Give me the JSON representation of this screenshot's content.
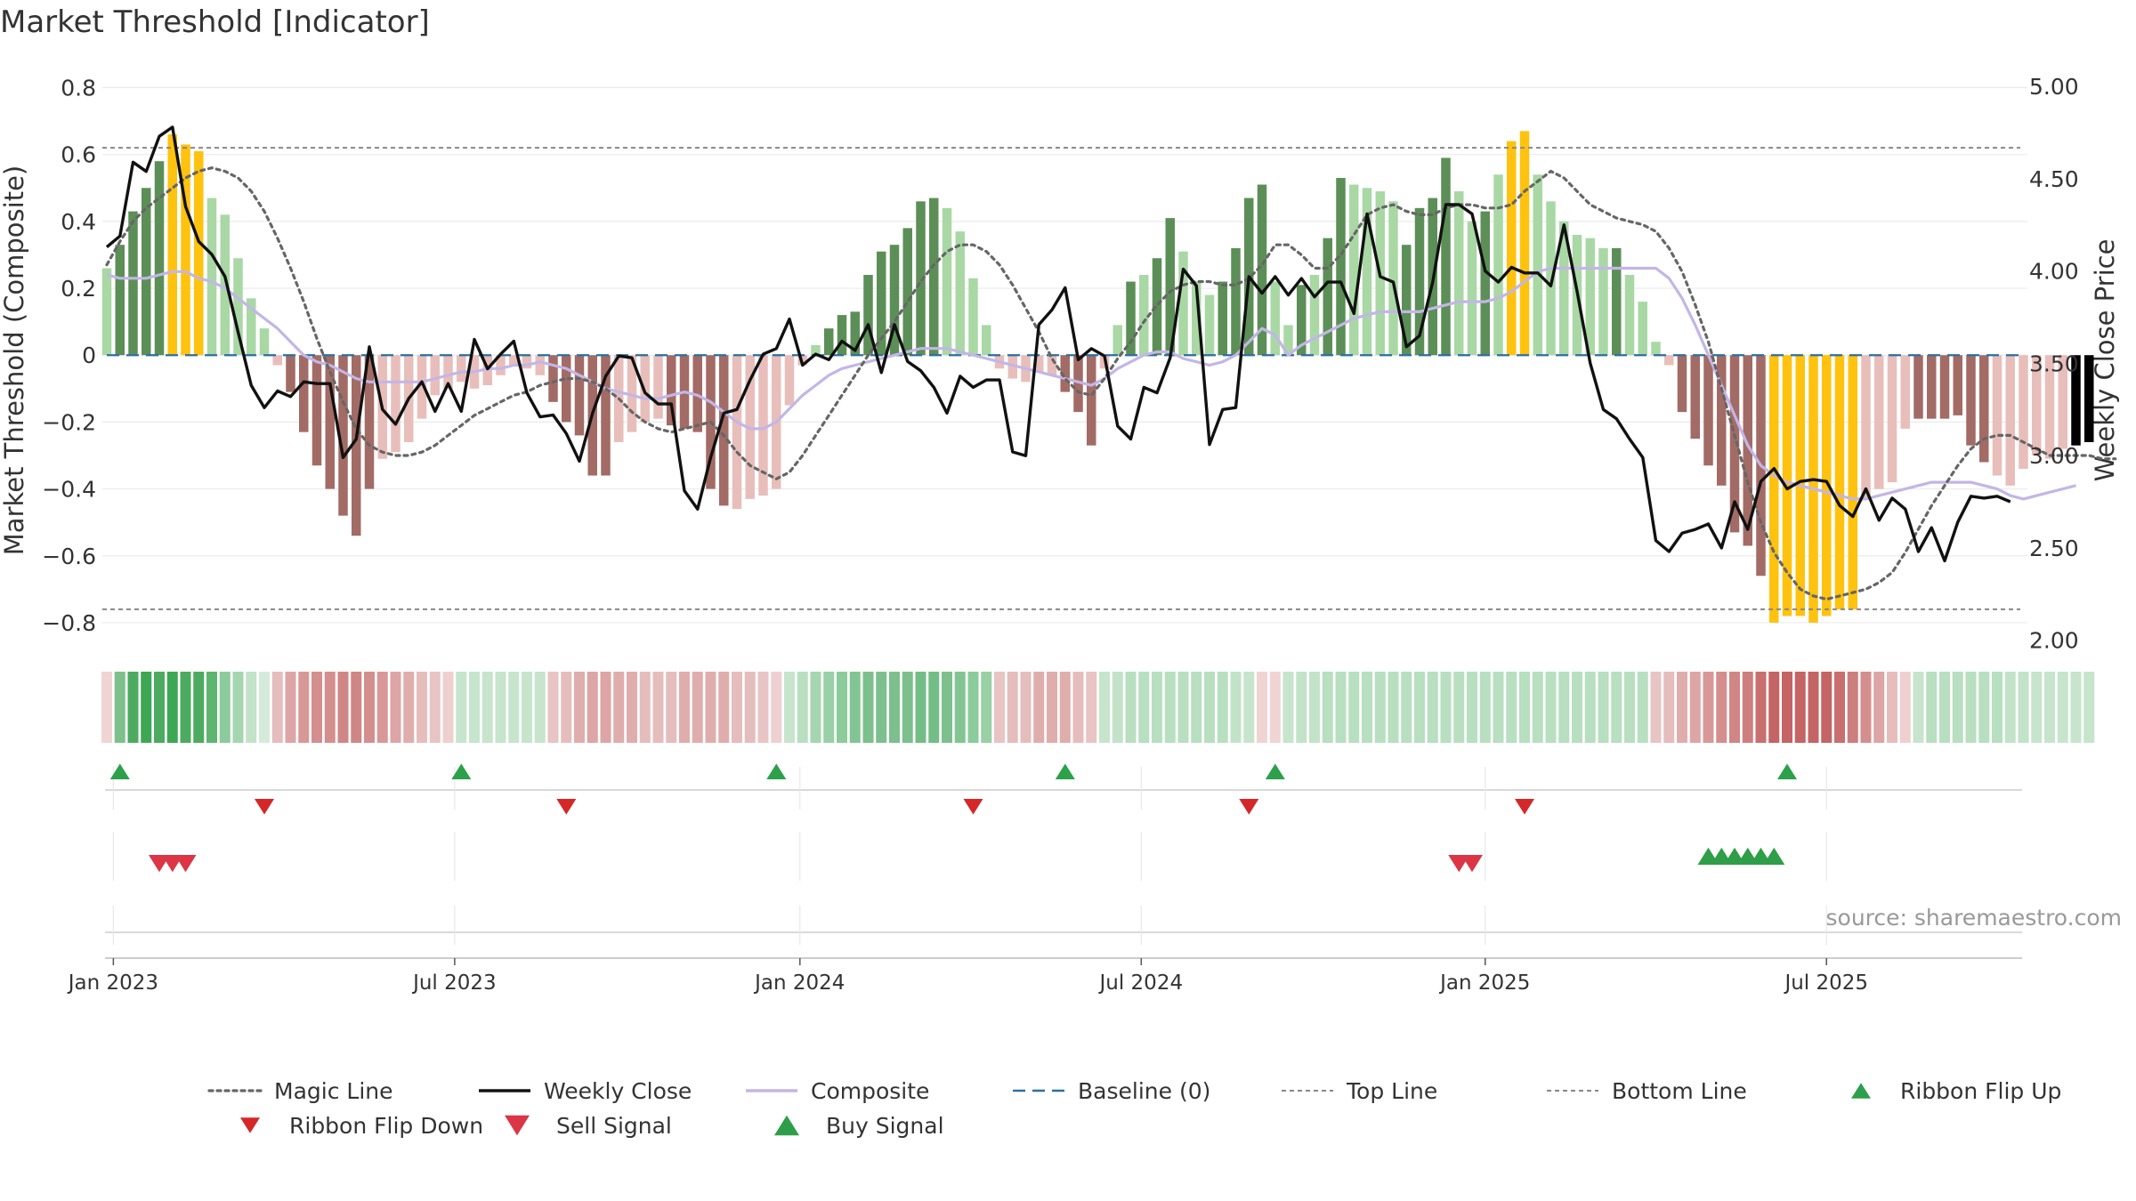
{
  "chart_data": {
    "type": "bar",
    "title": "Market Threshold [Indicator]",
    "ylabel_left": "Market Threshold (Composite)",
    "ylabel_right": "Weekly Close Price",
    "ylim_left": [
      -0.88,
      0.82
    ],
    "ylim_right": [
      1.95,
      5.03
    ],
    "yticks_left": [
      0.8,
      0.6,
      0.4,
      0.2,
      0,
      -0.2,
      -0.4,
      -0.6,
      -0.8
    ],
    "ytick_labels_left": [
      "0.8",
      "0.6",
      "0.4",
      "0.2",
      "0",
      "−0.2",
      "−0.4",
      "−0.6",
      "−0.8"
    ],
    "yticks_right": [
      5.0,
      4.5,
      4.0,
      3.5,
      3.0,
      2.5,
      2.0
    ],
    "ytick_labels_right": [
      "5.00",
      "4.50",
      "4.00",
      "3.50",
      "3.00",
      "2.50",
      "2.00"
    ],
    "xticks_week": [
      0.5,
      26.5,
      52.8,
      78.8,
      105.0,
      131.0
    ],
    "xtick_labels": [
      "Jan 2023",
      "Jul 2023",
      "Jan 2024",
      "Jul 2024",
      "Jan 2025",
      "Jul 2025"
    ],
    "top_line": 0.62,
    "bottom_line": -0.76,
    "baseline": 0,
    "source": "source: sharemaestro.com",
    "composite_bars": [
      0.26,
      0.33,
      0.43,
      0.5,
      0.58,
      0.66,
      0.63,
      0.61,
      0.47,
      0.42,
      0.29,
      0.17,
      0.08,
      -0.03,
      -0.11,
      -0.23,
      -0.33,
      -0.4,
      -0.48,
      -0.54,
      -0.4,
      -0.31,
      -0.29,
      -0.26,
      -0.19,
      -0.12,
      -0.1,
      -0.08,
      -0.1,
      -0.09,
      -0.06,
      -0.03,
      -0.04,
      -0.06,
      -0.14,
      -0.2,
      -0.24,
      -0.36,
      -0.36,
      -0.26,
      -0.23,
      -0.2,
      -0.19,
      -0.21,
      -0.22,
      -0.23,
      -0.4,
      -0.45,
      -0.46,
      -0.43,
      -0.42,
      -0.4,
      -0.15,
      -0.03,
      0.03,
      0.08,
      0.12,
      0.13,
      0.24,
      0.31,
      0.33,
      0.38,
      0.46,
      0.47,
      0.44,
      0.37,
      0.23,
      0.09,
      -0.04,
      -0.07,
      -0.08,
      -0.05,
      -0.06,
      -0.11,
      -0.17,
      -0.27,
      -0.04,
      0.09,
      0.22,
      0.24,
      0.29,
      0.41,
      0.31,
      0.22,
      0.18,
      0.22,
      0.32,
      0.47,
      0.51,
      0.22,
      0.09,
      0.21,
      0.24,
      0.35,
      0.53,
      0.51,
      0.5,
      0.49,
      0.46,
      0.33,
      0.44,
      0.47,
      0.59,
      0.49,
      0.4,
      0.43,
      0.54,
      0.64,
      0.67,
      0.54,
      0.46,
      0.4,
      0.36,
      0.35,
      0.32,
      0.32,
      0.24,
      0.16,
      0.04,
      -0.03,
      -0.17,
      -0.25,
      -0.33,
      -0.39,
      -0.53,
      -0.57,
      -0.66,
      -0.8,
      -0.78,
      -0.78,
      -0.8,
      -0.78,
      -0.76,
      -0.76,
      -0.43,
      -0.4,
      -0.38,
      -0.22,
      -0.19,
      -0.19,
      -0.19,
      -0.18,
      -0.27,
      -0.32,
      -0.36,
      -0.39,
      -0.34,
      -0.3,
      -0.31,
      -0.28,
      -0.27,
      -0.26
    ],
    "bar_type": [
      1,
      2,
      2,
      2,
      2,
      3,
      3,
      3,
      1,
      1,
      1,
      1,
      1,
      4,
      5,
      5,
      5,
      5,
      5,
      5,
      5,
      4,
      4,
      4,
      4,
      4,
      4,
      4,
      4,
      4,
      4,
      4,
      4,
      4,
      5,
      5,
      5,
      5,
      5,
      4,
      4,
      4,
      4,
      5,
      5,
      5,
      5,
      5,
      4,
      4,
      4,
      4,
      4,
      4,
      1,
      2,
      2,
      2,
      2,
      2,
      2,
      2,
      2,
      2,
      1,
      1,
      1,
      1,
      4,
      4,
      4,
      4,
      4,
      5,
      5,
      5,
      4,
      1,
      2,
      1,
      2,
      2,
      1,
      1,
      1,
      2,
      2,
      2,
      2,
      1,
      1,
      2,
      1,
      2,
      2,
      1,
      1,
      1,
      1,
      2,
      2,
      2,
      2,
      1,
      1,
      2,
      1,
      3,
      3,
      1,
      1,
      1,
      1,
      1,
      1,
      2,
      1,
      1,
      1,
      4,
      5,
      5,
      5,
      5,
      5,
      5,
      5,
      3,
      3,
      3,
      3,
      3,
      3,
      3,
      4,
      4,
      4,
      4,
      5,
      5,
      5,
      5,
      5,
      5,
      4,
      4,
      4,
      4,
      4,
      4
    ],
    "magic_line": [
      0.27,
      0.34,
      0.4,
      0.44,
      0.47,
      0.5,
      0.53,
      0.55,
      0.56,
      0.55,
      0.53,
      0.49,
      0.43,
      0.35,
      0.26,
      0.16,
      0.05,
      -0.05,
      -0.14,
      -0.22,
      -0.27,
      -0.29,
      -0.3,
      -0.3,
      -0.29,
      -0.27,
      -0.24,
      -0.21,
      -0.18,
      -0.16,
      -0.14,
      -0.12,
      -0.11,
      -0.09,
      -0.08,
      -0.07,
      -0.07,
      -0.08,
      -0.1,
      -0.13,
      -0.17,
      -0.2,
      -0.22,
      -0.23,
      -0.22,
      -0.21,
      -0.2,
      -0.24,
      -0.29,
      -0.33,
      -0.35,
      -0.37,
      -0.35,
      -0.3,
      -0.24,
      -0.18,
      -0.12,
      -0.06,
      0,
      0.05,
      0.1,
      0.16,
      0.22,
      0.27,
      0.31,
      0.33,
      0.33,
      0.31,
      0.27,
      0.21,
      0.14,
      0.07,
      -0.01,
      -0.07,
      -0.11,
      -0.12,
      -0.07,
      -0.01,
      0.04,
      0.1,
      0.15,
      0.19,
      0.21,
      0.22,
      0.22,
      0.21,
      0.21,
      0.23,
      0.27,
      0.33,
      0.33,
      0.3,
      0.26,
      0.26,
      0.3,
      0.36,
      0.42,
      0.44,
      0.45,
      0.43,
      0.42,
      0.42,
      0.44,
      0.45,
      0.45,
      0.44,
      0.44,
      0.45,
      0.49,
      0.52,
      0.55,
      0.53,
      0.49,
      0.45,
      0.43,
      0.41,
      0.4,
      0.39,
      0.37,
      0.32,
      0.25,
      0.15,
      0.04,
      -0.1,
      -0.24,
      -0.38,
      -0.5,
      -0.59,
      -0.65,
      -0.7,
      -0.72,
      -0.73,
      -0.72,
      -0.71,
      -0.7,
      -0.68,
      -0.65,
      -0.59,
      -0.52,
      -0.45,
      -0.39,
      -0.33,
      -0.28,
      -0.25,
      -0.24,
      -0.24,
      -0.26,
      -0.28,
      -0.3,
      -0.3,
      -0.3,
      -0.3,
      -0.31,
      -0.31
    ],
    "composite_line": [
      0.24,
      0.23,
      0.23,
      0.23,
      0.24,
      0.25,
      0.25,
      0.23,
      0.22,
      0.2,
      0.17,
      0.14,
      0.11,
      0.08,
      0.04,
      0,
      -0.02,
      -0.03,
      -0.05,
      -0.07,
      -0.08,
      -0.08,
      -0.08,
      -0.08,
      -0.08,
      -0.07,
      -0.06,
      -0.05,
      -0.05,
      -0.04,
      -0.04,
      -0.03,
      -0.03,
      -0.02,
      -0.03,
      -0.04,
      -0.06,
      -0.08,
      -0.1,
      -0.11,
      -0.12,
      -0.13,
      -0.13,
      -0.12,
      -0.11,
      -0.12,
      -0.14,
      -0.17,
      -0.2,
      -0.22,
      -0.22,
      -0.2,
      -0.16,
      -0.12,
      -0.09,
      -0.06,
      -0.04,
      -0.03,
      -0.02,
      -0.01,
      0,
      0.01,
      0.02,
      0.02,
      0.02,
      0.01,
      0,
      -0.01,
      -0.02,
      -0.03,
      -0.04,
      -0.05,
      -0.06,
      -0.07,
      -0.08,
      -0.09,
      -0.07,
      -0.04,
      -0.02,
      0,
      0.01,
      0.01,
      -0.01,
      -0.02,
      -0.03,
      -0.02,
      0,
      0.04,
      0.08,
      0.06,
      0,
      0.03,
      0.05,
      0.07,
      0.09,
      0.11,
      0.12,
      0.13,
      0.13,
      0.13,
      0.13,
      0.14,
      0.15,
      0.16,
      0.16,
      0.16,
      0.17,
      0.19,
      0.22,
      0.25,
      0.26,
      0.26,
      0.26,
      0.26,
      0.26,
      0.26,
      0.26,
      0.26,
      0.26,
      0.23,
      0.17,
      0.09,
      0,
      -0.09,
      -0.18,
      -0.27,
      -0.33,
      -0.36,
      -0.38,
      -0.39,
      -0.4,
      -0.41,
      -0.42,
      -0.43,
      -0.43,
      -0.42,
      -0.41,
      -0.4,
      -0.39,
      -0.38,
      -0.38,
      -0.38,
      -0.38,
      -0.39,
      -0.4,
      -0.42,
      -0.43,
      -0.42,
      -0.41,
      -0.4,
      -0.39
    ],
    "weekly_close": [
      4.13,
      4.19,
      4.59,
      4.54,
      4.73,
      4.78,
      4.35,
      4.16,
      4.09,
      3.97,
      3.67,
      3.38,
      3.26,
      3.35,
      3.32,
      3.4,
      3.39,
      3.39,
      2.99,
      3.09,
      3.59,
      3.25,
      3.17,
      3.31,
      3.4,
      3.24,
      3.39,
      3.24,
      3.63,
      3.47,
      3.55,
      3.62,
      3.34,
      3.21,
      3.22,
      3.12,
      2.97,
      3.23,
      3.43,
      3.54,
      3.53,
      3.34,
      3.28,
      3.28,
      2.81,
      2.71,
      2.99,
      3.23,
      3.25,
      3.41,
      3.55,
      3.58,
      3.74,
      3.49,
      3.55,
      3.52,
      3.62,
      3.57,
      3.71,
      3.45,
      3.71,
      3.51,
      3.46,
      3.37,
      3.23,
      3.43,
      3.37,
      3.41,
      3.41,
      3.02,
      3.0,
      3.71,
      3.79,
      3.91,
      3.52,
      3.58,
      3.54,
      3.16,
      3.09,
      3.37,
      3.34,
      3.53,
      4.01,
      3.92,
      3.06,
      3.25,
      3.26,
      3.97,
      3.88,
      3.97,
      3.87,
      3.96,
      3.86,
      3.94,
      3.94,
      3.77,
      4.31,
      3.97,
      3.94,
      3.59,
      3.65,
      3.94,
      4.36,
      4.36,
      4.31,
      4.0,
      3.94,
      4.02,
      3.99,
      3.99,
      3.92,
      4.25,
      3.89,
      3.5,
      3.25,
      3.2,
      3.09,
      2.99,
      2.54,
      2.48,
      2.58,
      2.6,
      2.63,
      2.5,
      2.75,
      2.6,
      2.86,
      2.93,
      2.82,
      2.86,
      2.87,
      2.86,
      2.73,
      2.67,
      2.82,
      2.65,
      2.77,
      2.71,
      2.48,
      2.61,
      2.43,
      2.64,
      2.78,
      2.77,
      2.78,
      2.75
    ],
    "ribbon_colors": [
      "#f0d4d4",
      "#7dc08d",
      "#4cab60",
      "#3ea754",
      "#4cab60",
      "#3ea754",
      "#4cab60",
      "#4cab60",
      "#5fb570",
      "#8ccb9b",
      "#a6d6b0",
      "#c2e3c8",
      "#d4ebd9",
      "#e5bdbd",
      "#dda5a5",
      "#d99898",
      "#d58e8e",
      "#d58e8e",
      "#d18686",
      "#d18686",
      "#d58e8e",
      "#d99898",
      "#dda5a5",
      "#e0adad",
      "#e5bdbd",
      "#e8c4c4",
      "#eed0d0",
      "#c6e5cc",
      "#c6e5cc",
      "#c6e5cc",
      "#c6e5cc",
      "#c6e5cc",
      "#c6e5cc",
      "#c6e5cc",
      "#e8c4c4",
      "#e5bdbd",
      "#e0adad",
      "#dda5a5",
      "#dda5a5",
      "#e0adad",
      "#e0adad",
      "#e5bdbd",
      "#e5bdbd",
      "#e5bdbd",
      "#e0adad",
      "#e0adad",
      "#e0adad",
      "#e0adad",
      "#e5bdbd",
      "#e5bdbd",
      "#e8c4c4",
      "#eed0d0",
      "#c6e5cc",
      "#b8dfc0",
      "#a6d6b0",
      "#99d0a5",
      "#8ccb9b",
      "#82c592",
      "#7dc08d",
      "#7dc08d",
      "#7dc08d",
      "#7dc08d",
      "#74bd86",
      "#74bd86",
      "#7dc08d",
      "#82c592",
      "#8ccb9b",
      "#99d0a5",
      "#e8c4c4",
      "#e5bdbd",
      "#e5bdbd",
      "#e0adad",
      "#e0adad",
      "#e0adad",
      "#e5bdbd",
      "#e8c4c4",
      "#c6e5cc",
      "#c2e3c8",
      "#b8dfc0",
      "#b8dfc0",
      "#b8dfc0",
      "#b8dfc0",
      "#b8dfc0",
      "#b8dfc0",
      "#b8dfc0",
      "#b8dfc0",
      "#c2e3c8",
      "#c6e5cc",
      "#f0d4d4",
      "#f0d4d4",
      "#c6e5cc",
      "#c2e3c8",
      "#c2e3c8",
      "#b8dfc0",
      "#b8dfc0",
      "#b8dfc0",
      "#b8dfc0",
      "#b8dfc0",
      "#b8dfc0",
      "#b8dfc0",
      "#b8dfc0",
      "#b8dfc0",
      "#b8dfc0",
      "#b8dfc0",
      "#b8dfc0",
      "#b8dfc0",
      "#b8dfc0",
      "#b8dfc0",
      "#b8dfc0",
      "#b8dfc0",
      "#b8dfc0",
      "#b8dfc0",
      "#b8dfc0",
      "#b8dfc0",
      "#b8dfc0",
      "#b8dfc0",
      "#b8dfc0",
      "#b8dfc0",
      "#e8c4c4",
      "#e5bdbd",
      "#e0adad",
      "#dda5a5",
      "#d99898",
      "#d58e8e",
      "#d18686",
      "#cd7e7e",
      "#c96f6f",
      "#c46464",
      "#c46464",
      "#c46464",
      "#c46464",
      "#c46464",
      "#c96f6f",
      "#cd7e7e",
      "#d58e8e",
      "#dda5a5",
      "#e5bdbd",
      "#eed0d0",
      "#c6e5cc",
      "#b8dfc0",
      "#b8dfc0",
      "#b8dfc0",
      "#b8dfc0",
      "#b8dfc0",
      "#b8dfc0",
      "#c2e3c8",
      "#c2e3c8",
      "#c6e5cc",
      "#c6e5cc",
      "#c6e5cc",
      "#c6e5cc",
      "#c6e5cc"
    ],
    "ribbon_flip_up_weeks": [
      1,
      27,
      51,
      73,
      89,
      128
    ],
    "ribbon_flip_down_weeks": [
      12,
      35,
      66,
      87,
      108
    ],
    "sell_signal_weeks": [
      4,
      5,
      6,
      103,
      104
    ],
    "buy_signal_weeks": [
      122,
      123,
      124,
      125,
      126,
      127
    ],
    "legend": [
      {
        "key": "magic",
        "label": "Magic Line"
      },
      {
        "key": "close",
        "label": "Weekly Close"
      },
      {
        "key": "composite",
        "label": "Composite"
      },
      {
        "key": "baseline",
        "label": "Baseline (0)"
      },
      {
        "key": "topline",
        "label": "Top Line"
      },
      {
        "key": "bottomline",
        "label": "Bottom Line"
      },
      {
        "key": "flipup",
        "label": "Ribbon Flip Up"
      },
      {
        "key": "flipdown",
        "label": "Ribbon Flip Down"
      },
      {
        "key": "sell",
        "label": "Sell Signal"
      },
      {
        "key": "buy",
        "label": "Buy Signal"
      }
    ]
  },
  "colors": {
    "bar_light_green": "#a9d8a5",
    "bar_dark_green": "#5c8f57",
    "bar_gold": "#ffc20e",
    "bar_light_red": "#e8bebb",
    "bar_dark_red": "#a36b65",
    "weekly_close": "#111111",
    "composite": "#c3b6e6",
    "magic_line": "#666666",
    "baseline": "#2c6fa0",
    "threshold_lines": "#888888",
    "flip_up": "#2ca04a",
    "flip_down": "#d62728",
    "sell": "#dc3545",
    "buy": "#2e9e48"
  }
}
